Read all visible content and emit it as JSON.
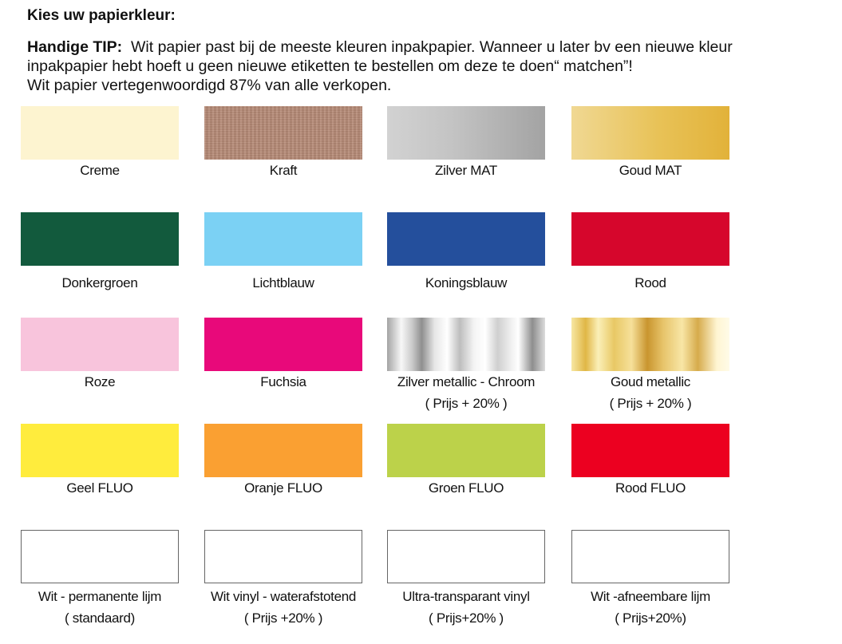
{
  "title": "Kies uw papierkleur:",
  "tip": {
    "label": "Handige TIP:",
    "line1": "Wit papier past bij de meeste kleuren inpakpapier.  Wanneer u later bv een nieuwe kleur",
    "line2": "inpakpapier hebt hoeft u geen nieuwe etiketten te bestellen om deze te doen“ matchen”!",
    "line3": "Wit papier vertegenwoordigd 87% van alle verkopen."
  },
  "colors": [
    {
      "name": "Creme",
      "note": "",
      "fill": "#fdf4d0"
    },
    {
      "name": "Kraft",
      "note": "",
      "fill": "#b88c78"
    },
    {
      "name": "Zilver MAT",
      "note": "",
      "fill": "#c4c4c4"
    },
    {
      "name": "Goud MAT",
      "note": "",
      "fill": "#e8c257"
    },
    {
      "name": "Donkergroen",
      "note": "",
      "fill": "#125a3d"
    },
    {
      "name": "Lichtblauw",
      "note": "",
      "fill": "#7bd1f4"
    },
    {
      "name": "Koningsblauw",
      "note": "",
      "fill": "#244f9c"
    },
    {
      "name": "Rood",
      "note": "",
      "fill": "#d6062c"
    },
    {
      "name": "Roze",
      "note": "",
      "fill": "#f8c4dc"
    },
    {
      "name": "Fuchsia",
      "note": "",
      "fill": "#e8097a"
    },
    {
      "name": "Zilver metallic - Chroom",
      "note": "( Prijs + 20% )",
      "fill": "#d0d0d0"
    },
    {
      "name": "Goud metallic",
      "note": "( Prijs + 20% )",
      "fill": "#e7c46a"
    },
    {
      "name": "Geel FLUO",
      "note": "",
      "fill": "#ffec3d"
    },
    {
      "name": "Oranje FLUO",
      "note": "",
      "fill": "#faa032"
    },
    {
      "name": "Groen FLUO",
      "note": "",
      "fill": "#bcd24a"
    },
    {
      "name": "Rood FLUO",
      "note": "",
      "fill": "#ec0020"
    },
    {
      "name": "Wit - permanente lijm",
      "note": "( standaard)",
      "fill": "#ffffff"
    },
    {
      "name": "Wit vinyl - waterafstotend",
      "note": "( Prijs +20% )",
      "fill": "#ffffff"
    },
    {
      "name": "Ultra-transparant vinyl",
      "note": "( Prijs+20% )",
      "fill": "#ffffff"
    },
    {
      "name": "Wit -afneembare lijm",
      "note": "( Prijs+20%)",
      "fill": "#ffffff"
    }
  ]
}
